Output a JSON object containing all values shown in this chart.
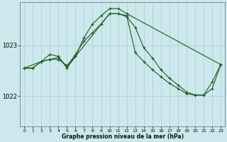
{
  "title": "Graphe pression niveau de la mer (hPa)",
  "bg_color": "#cce8ed",
  "grid_color": "#aacccc",
  "line_color": "#1a5c1a",
  "xlim": [
    -0.5,
    23.5
  ],
  "ylim": [
    1021.4,
    1023.85
  ],
  "yticks": [
    1022,
    1023
  ],
  "xticks": [
    0,
    1,
    2,
    3,
    4,
    5,
    6,
    7,
    8,
    9,
    10,
    11,
    12,
    13,
    14,
    15,
    16,
    17,
    18,
    19,
    20,
    21,
    22,
    23
  ],
  "series1_x": [
    0,
    1,
    2,
    3,
    4,
    5,
    6,
    7,
    8,
    9,
    10,
    11,
    12,
    13,
    14,
    15,
    16,
    17,
    18,
    19,
    20,
    21,
    22,
    23
  ],
  "series1_y": [
    1022.55,
    1022.55,
    1022.68,
    1022.72,
    1022.76,
    1022.58,
    1022.82,
    1023.08,
    1023.25,
    1023.42,
    1023.62,
    1023.62,
    1023.56,
    1023.35,
    1022.95,
    1022.75,
    1022.52,
    1022.35,
    1022.22,
    1022.08,
    1022.02,
    1022.02,
    1022.28,
    1022.62
  ],
  "series2_x": [
    0,
    1,
    2,
    3,
    4,
    5,
    6,
    10,
    11,
    12,
    13,
    14,
    15,
    16,
    17,
    18,
    19,
    20,
    21,
    22,
    23
  ],
  "series2_y": [
    1022.55,
    1022.55,
    1022.68,
    1022.72,
    1022.72,
    1022.6,
    1022.78,
    1023.62,
    1023.62,
    1023.58,
    1022.85,
    1022.68,
    1022.52,
    1022.38,
    1022.25,
    1022.15,
    1022.05,
    1022.02,
    1022.02,
    1022.15,
    1022.62
  ],
  "series3_x": [
    0,
    2,
    3,
    4,
    5,
    6,
    7,
    8,
    9,
    10,
    11,
    12,
    23
  ],
  "series3_y": [
    1022.55,
    1022.68,
    1022.82,
    1022.78,
    1022.55,
    1022.78,
    1023.15,
    1023.42,
    1023.58,
    1023.72,
    1023.72,
    1023.62,
    1022.62
  ]
}
